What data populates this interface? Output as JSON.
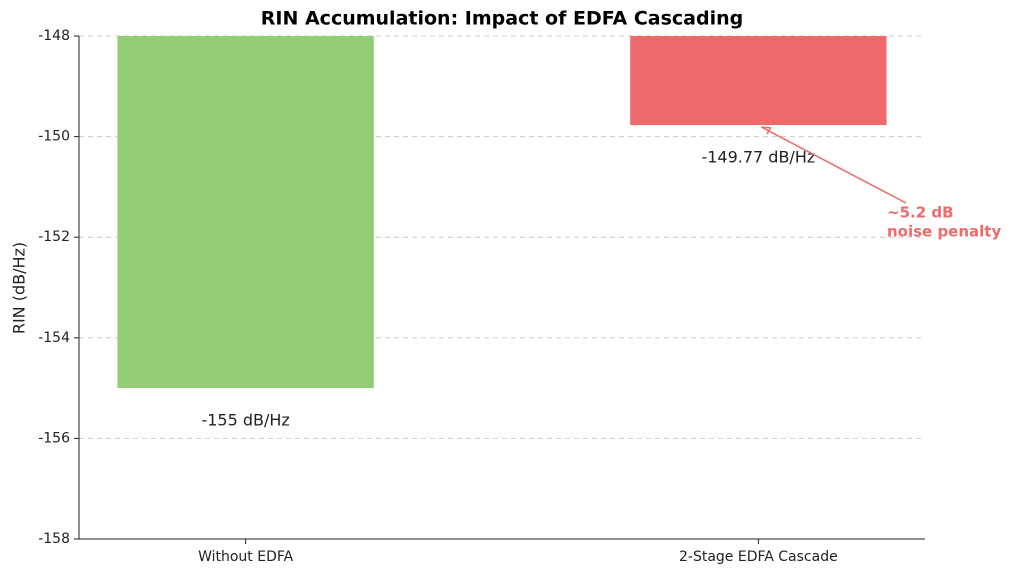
{
  "chart_data": {
    "type": "bar",
    "title": "RIN Accumulation: Impact of EDFA Cascading",
    "y_label": "RIN (dB/Hz)",
    "categories": [
      "Without EDFA",
      "2-Stage EDFA Cascade"
    ],
    "values": [
      -155,
      -149.77
    ],
    "value_labels": [
      "-155 dB/Hz",
      "-149.77 dB/Hz"
    ],
    "colors": [
      "#93cc75",
      "#ef6b6b"
    ],
    "ylim": [
      -158,
      -148
    ],
    "yticks": [
      -158,
      -156,
      -154,
      -152,
      -150,
      -148
    ],
    "grid": true,
    "annotation": {
      "lines": [
        "~5.2 dB",
        "noise penalty"
      ],
      "color": "#ef6b6b"
    }
  }
}
